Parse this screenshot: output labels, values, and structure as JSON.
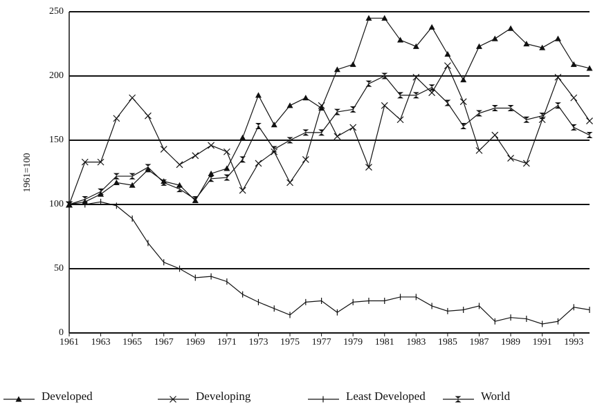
{
  "chart_data": {
    "type": "line",
    "y_label": "1961=100",
    "x": [
      1961,
      1962,
      1963,
      1964,
      1965,
      1966,
      1967,
      1968,
      1969,
      1970,
      1971,
      1972,
      1973,
      1974,
      1975,
      1976,
      1977,
      1978,
      1979,
      1980,
      1981,
      1982,
      1983,
      1984,
      1985,
      1986,
      1987,
      1988,
      1989,
      1990,
      1991,
      1992,
      1993,
      1994
    ],
    "xlim": [
      1961,
      1994
    ],
    "xticks": [
      1961,
      1963,
      1965,
      1967,
      1969,
      1971,
      1973,
      1975,
      1977,
      1979,
      1981,
      1983,
      1985,
      1987,
      1989,
      1991,
      1993
    ],
    "ylim": [
      0,
      250
    ],
    "yticks": [
      0,
      50,
      100,
      150,
      200,
      250
    ],
    "grid": true,
    "series": [
      {
        "name": "Developed",
        "color": "#111111",
        "marker": "triangle",
        "values": [
          100,
          102,
          108,
          117,
          115,
          127,
          118,
          115,
          103,
          124,
          128,
          152,
          185,
          162,
          177,
          183,
          175,
          205,
          209,
          245,
          245,
          228,
          223,
          238,
          217,
          197,
          223,
          229,
          237,
          225,
          222,
          229,
          209,
          206
        ]
      },
      {
        "name": "Developing",
        "color": "#111111",
        "marker": "x",
        "values": [
          100,
          133,
          133,
          167,
          183,
          169,
          143,
          131,
          138,
          146,
          141,
          111,
          132,
          141,
          117,
          135,
          177,
          153,
          160,
          129,
          177,
          166,
          199,
          187,
          208,
          180,
          142,
          154,
          136,
          132,
          166,
          199,
          183,
          165
        ]
      },
      {
        "name": "Least Developed",
        "color": "#111111",
        "marker": "plus",
        "values": [
          100,
          100,
          102,
          99,
          89,
          70,
          55,
          50,
          43,
          44,
          40,
          30,
          24,
          19,
          14,
          24,
          25,
          16,
          24,
          25,
          25,
          28,
          28,
          21,
          17,
          18,
          21,
          9,
          12,
          11,
          7,
          9,
          20,
          18
        ]
      },
      {
        "name": "World",
        "color": "#111111",
        "marker": "square",
        "values": [
          100,
          104,
          110,
          122,
          122,
          129,
          117,
          112,
          104,
          120,
          121,
          135,
          161,
          143,
          150,
          156,
          156,
          172,
          174,
          194,
          200,
          185,
          185,
          191,
          179,
          161,
          171,
          175,
          175,
          166,
          169,
          177,
          160,
          154
        ]
      }
    ]
  }
}
